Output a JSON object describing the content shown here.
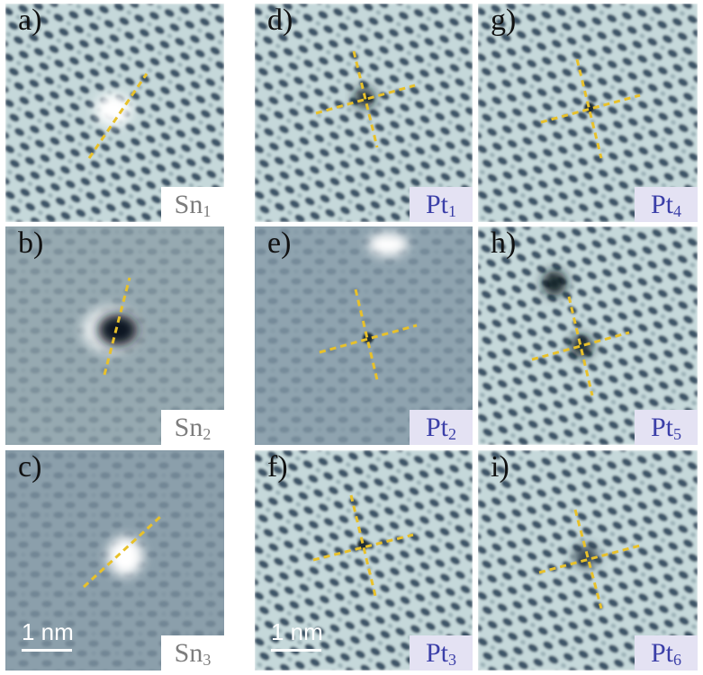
{
  "panels": [
    {
      "id": "a",
      "label": "a)",
      "element": "Sn",
      "subscript": "1",
      "kind": "sn"
    },
    {
      "id": "b",
      "label": "b)",
      "element": "Sn",
      "subscript": "2",
      "kind": "sn"
    },
    {
      "id": "c",
      "label": "c)",
      "element": "Sn",
      "subscript": "3",
      "kind": "sn",
      "scale_text": "1 nm"
    },
    {
      "id": "d",
      "label": "d)",
      "element": "Pt",
      "subscript": "1",
      "kind": "pt"
    },
    {
      "id": "e",
      "label": "e)",
      "element": "Pt",
      "subscript": "2",
      "kind": "pt"
    },
    {
      "id": "f",
      "label": "f)",
      "element": "Pt",
      "subscript": "3",
      "kind": "pt",
      "scale_text": "1 nm"
    },
    {
      "id": "g",
      "label": "g)",
      "element": "Pt",
      "subscript": "4",
      "kind": "pt"
    },
    {
      "id": "h",
      "label": "h)",
      "element": "Pt",
      "subscript": "5",
      "kind": "pt"
    },
    {
      "id": "i",
      "label": "i)",
      "element": "Pt",
      "subscript": "6",
      "kind": "pt"
    }
  ],
  "colors": {
    "lattice_bg": "#8ea4ac",
    "lattice_light": "#c5d8da",
    "lattice_dark": "#3e5468",
    "marker": "#e8c12a",
    "sn_text": "#7d7d7d",
    "pt_text": "#3b3fa8",
    "pt_tag_bg": "#e4e2f3"
  }
}
